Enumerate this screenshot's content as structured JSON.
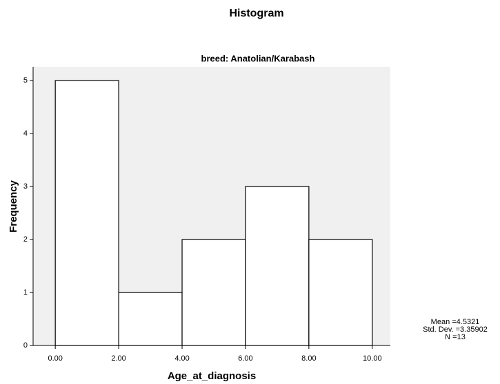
{
  "chart_data": {
    "type": "histogram",
    "title": "Histogram",
    "subtitle": "breed: Anatolian/Karabash",
    "x_label": "Age_at_diagnosis",
    "y_label": "Frequency",
    "bins": [
      0,
      2,
      4,
      6,
      8,
      10
    ],
    "values": [
      5,
      1,
      2,
      3,
      2
    ],
    "color": "#ffffff",
    "edge_color": "#000000",
    "background": "#f0f0f0",
    "xlim": [
      -0.7,
      10.57
    ],
    "ylim": [
      0,
      5.26
    ],
    "xticks": [
      {
        "value": 0,
        "label": "0.00"
      },
      {
        "value": 2,
        "label": "2.00"
      },
      {
        "value": 4,
        "label": "4.00"
      },
      {
        "value": 6,
        "label": "6.00"
      },
      {
        "value": 8,
        "label": "8.00"
      },
      {
        "value": 10,
        "label": "10.00"
      }
    ],
    "yticks": [
      0,
      1,
      2,
      3,
      4,
      5
    ],
    "stats": [
      "Mean =4.5321",
      "Std. Dev. =3.35902",
      "N =13"
    ]
  }
}
